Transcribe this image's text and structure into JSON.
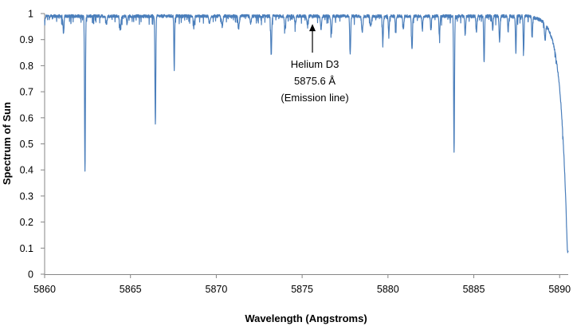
{
  "chart_data": {
    "type": "line",
    "title": "",
    "xlabel": "Wavelength (Angstroms)",
    "ylabel": "Spectrum of Sun",
    "xlim": [
      5860,
      5890.5
    ],
    "ylim": [
      0,
      1
    ],
    "xticks": [
      5860,
      5865,
      5870,
      5875,
      5880,
      5885,
      5890
    ],
    "yticks": [
      0,
      0.1,
      0.2,
      0.3,
      0.4,
      0.5,
      0.6,
      0.7,
      0.8,
      0.9,
      1
    ],
    "grid": false,
    "legend": "none",
    "color": "#4a7ebb",
    "series": [
      {
        "name": "",
        "baseline": 0.99,
        "lines": [
          {
            "x": 5861.1,
            "depth": 0.07,
            "w": 0.04
          },
          {
            "x": 5862.35,
            "depth": 0.6,
            "w": 0.035
          },
          {
            "x": 5863.6,
            "depth": 0.03,
            "w": 0.05
          },
          {
            "x": 5864.4,
            "depth": 0.05,
            "w": 0.05
          },
          {
            "x": 5864.8,
            "depth": 0.03,
            "w": 0.04
          },
          {
            "x": 5866.45,
            "depth": 0.41,
            "w": 0.035
          },
          {
            "x": 5867.55,
            "depth": 0.21,
            "w": 0.03
          },
          {
            "x": 5868.7,
            "depth": 0.03,
            "w": 0.05
          },
          {
            "x": 5869.6,
            "depth": 0.03,
            "w": 0.05
          },
          {
            "x": 5870.35,
            "depth": 0.04,
            "w": 0.05
          },
          {
            "x": 5871.3,
            "depth": 0.05,
            "w": 0.05
          },
          {
            "x": 5872.0,
            "depth": 0.03,
            "w": 0.05
          },
          {
            "x": 5873.2,
            "depth": 0.15,
            "w": 0.04
          },
          {
            "x": 5874.0,
            "depth": 0.05,
            "w": 0.05
          },
          {
            "x": 5874.6,
            "depth": 0.03,
            "w": 0.05
          },
          {
            "x": 5875.3,
            "depth": 0.03,
            "w": 0.05
          },
          {
            "x": 5876.1,
            "depth": 0.05,
            "w": 0.05
          },
          {
            "x": 5876.7,
            "depth": 0.07,
            "w": 0.05
          },
          {
            "x": 5877.8,
            "depth": 0.14,
            "w": 0.04
          },
          {
            "x": 5878.5,
            "depth": 0.06,
            "w": 0.05
          },
          {
            "x": 5879.0,
            "depth": 0.04,
            "w": 0.05
          },
          {
            "x": 5879.7,
            "depth": 0.1,
            "w": 0.04
          },
          {
            "x": 5880.05,
            "depth": 0.07,
            "w": 0.04
          },
          {
            "x": 5880.45,
            "depth": 0.05,
            "w": 0.04
          },
          {
            "x": 5880.9,
            "depth": 0.05,
            "w": 0.04
          },
          {
            "x": 5881.4,
            "depth": 0.13,
            "w": 0.04
          },
          {
            "x": 5882.0,
            "depth": 0.05,
            "w": 0.04
          },
          {
            "x": 5882.5,
            "depth": 0.05,
            "w": 0.04
          },
          {
            "x": 5883.0,
            "depth": 0.08,
            "w": 0.04
          },
          {
            "x": 5883.85,
            "depth": 0.52,
            "w": 0.035
          },
          {
            "x": 5884.5,
            "depth": 0.07,
            "w": 0.04
          },
          {
            "x": 5885.15,
            "depth": 0.06,
            "w": 0.04
          },
          {
            "x": 5885.6,
            "depth": 0.18,
            "w": 0.035
          },
          {
            "x": 5886.1,
            "depth": 0.05,
            "w": 0.04
          },
          {
            "x": 5886.5,
            "depth": 0.1,
            "w": 0.04
          },
          {
            "x": 5887.0,
            "depth": 0.06,
            "w": 0.04
          },
          {
            "x": 5887.45,
            "depth": 0.14,
            "w": 0.035
          },
          {
            "x": 5887.9,
            "depth": 0.14,
            "w": 0.035
          },
          {
            "x": 5888.4,
            "depth": 0.08,
            "w": 0.04
          },
          {
            "x": 5889.15,
            "depth": 0.06,
            "w": 0.05
          }
        ],
        "wing": {
          "center": 5890.45,
          "strength": 0.95
        },
        "min_value": 0.05
      }
    ],
    "annotation": {
      "lines": [
        "Helium D3",
        "5875.6 Å",
        "(Emission line)"
      ],
      "x": 5875.6,
      "arrow_from_y": 0.85,
      "arrow_to_y": 0.96
    }
  }
}
